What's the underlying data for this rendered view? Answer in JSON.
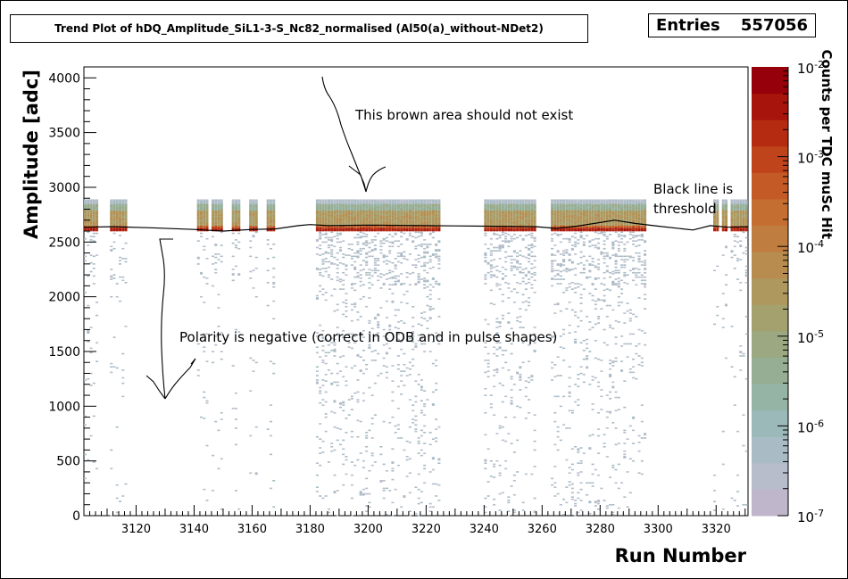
{
  "chart_data": {
    "type": "heatmap",
    "title": "Trend Plot of hDQ_Amplitude_SiL1-3-S_Nc82_normalised (Al50(a)_without-NDet2)",
    "stats": {
      "label": "Entries",
      "value": "557056"
    },
    "xlabel": "Run Number",
    "ylabel": "Amplitude [adc]",
    "zlabel": "Counts per TDC muSc Hit",
    "xlim": [
      3102,
      3331
    ],
    "ylim": [
      0,
      4100
    ],
    "x_ticks": [
      "3120",
      "3140",
      "3160",
      "3180",
      "3200",
      "3220",
      "3240",
      "3260",
      "3280",
      "3300",
      "3320"
    ],
    "y_ticks": [
      "0",
      "500",
      "1000",
      "1500",
      "2000",
      "2500",
      "3000",
      "3500",
      "4000"
    ],
    "z_scale": "log",
    "zlim": [
      1e-07,
      0.01
    ],
    "z_ticks": [
      {
        "base": "10",
        "exp": "-7"
      },
      {
        "base": "10",
        "exp": "-6"
      },
      {
        "base": "10",
        "exp": "-5"
      },
      {
        "base": "10",
        "exp": "-4"
      },
      {
        "base": "10",
        "exp": "-3"
      },
      {
        "base": "10",
        "exp": "-2"
      }
    ],
    "grid": false,
    "palette": [
      "#c0b6cc",
      "#b7bdcb",
      "#a9bcc5",
      "#9bb9b8",
      "#95b4a6",
      "#96ae94",
      "#9ba882",
      "#a4a16f",
      "#ae985e",
      "#b78c4e",
      "#bf7e40",
      "#c46e32",
      "#c45b26",
      "#bf441b",
      "#b52b12",
      "#a6140b",
      "#95000a"
    ],
    "occupied_run_ranges": [
      [
        3102,
        3107
      ],
      [
        3111,
        3117
      ],
      [
        3141,
        3145
      ],
      [
        3146,
        3148
      ],
      [
        3148,
        3150
      ],
      [
        3153,
        3156
      ],
      [
        3159,
        3162
      ],
      [
        3165,
        3168
      ],
      [
        3182,
        3225
      ],
      [
        3240,
        3258
      ],
      [
        3263,
        3296
      ],
      [
        3319,
        3321
      ],
      [
        3322,
        3324
      ],
      [
        3325,
        3331
      ]
    ],
    "main_band_adc": [
      2600,
      2890
    ],
    "threshold_line": {
      "color": "#000000",
      "points": [
        [
          3102,
          2635
        ],
        [
          3112,
          2640
        ],
        [
          3125,
          2630
        ],
        [
          3140,
          2615
        ],
        [
          3150,
          2600
        ],
        [
          3160,
          2615
        ],
        [
          3168,
          2620
        ],
        [
          3176,
          2650
        ],
        [
          3180,
          2660
        ],
        [
          3186,
          2650
        ],
        [
          3200,
          2655
        ],
        [
          3220,
          2650
        ],
        [
          3240,
          2645
        ],
        [
          3258,
          2640
        ],
        [
          3265,
          2625
        ],
        [
          3272,
          2645
        ],
        [
          3285,
          2700
        ],
        [
          3292,
          2670
        ],
        [
          3300,
          2645
        ],
        [
          3312,
          2610
        ],
        [
          3318,
          2650
        ],
        [
          3324,
          2635
        ],
        [
          3331,
          2640
        ]
      ]
    }
  },
  "annotations": {
    "brown_area": "This brown area should not exist",
    "black_line_1": "Black line is",
    "black_line_2": "threshold",
    "polarity": "Polarity is negative (correct in ODB and in pulse shapes)"
  }
}
